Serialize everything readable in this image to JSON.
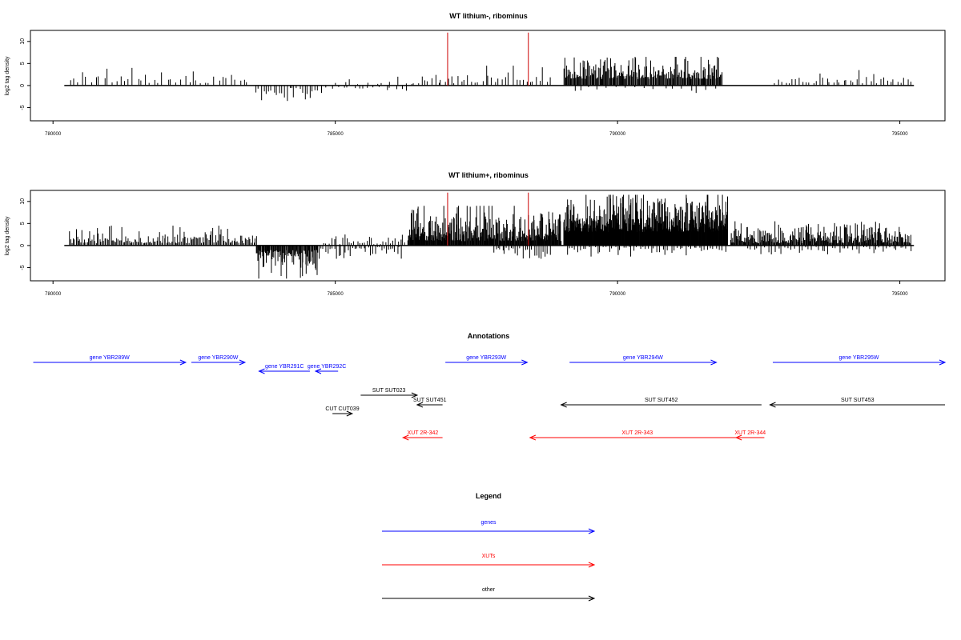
{
  "chart_data": [
    {
      "type": "bar",
      "title": "WT lithium-, ribominus",
      "ylabel": "log2 tag density",
      "xlim": [
        779600,
        795800
      ],
      "ylim": [
        -8,
        12.5
      ],
      "yticks": [
        -5,
        0,
        5,
        10
      ],
      "xticks": [
        780000,
        785000,
        790000,
        795000
      ],
      "baseline_range": [
        780200,
        795250
      ],
      "red_markers": [
        786990,
        788420
      ],
      "red_marker_top": 12,
      "density_regions": [
        {
          "from": 780300,
          "to": 783500,
          "sign": 1,
          "min": 0.5,
          "max": 4,
          "step": 75
        },
        {
          "from": 783600,
          "to": 784700,
          "sign": -1,
          "min": 0.5,
          "max": 3.5,
          "step": 45
        },
        {
          "from": 784750,
          "to": 786300,
          "sign": -1,
          "min": 0.3,
          "max": 2,
          "step": 95
        },
        {
          "from": 785000,
          "to": 786400,
          "sign": 1,
          "min": 0.3,
          "max": 2,
          "step": 140
        },
        {
          "from": 786400,
          "to": 788800,
          "sign": 1,
          "min": 0.5,
          "max": 4.5,
          "step": 60
        },
        {
          "from": 789050,
          "to": 791850,
          "sign": 1,
          "min": 1.5,
          "max": 6.5,
          "step": 14
        },
        {
          "from": 789200,
          "to": 791800,
          "sign": -1,
          "min": 0.3,
          "max": 2,
          "step": 160
        },
        {
          "from": 792800,
          "to": 795200,
          "sign": 1,
          "min": 0.5,
          "max": 3.5,
          "step": 60
        }
      ]
    },
    {
      "type": "bar",
      "title": "WT lithium+, ribominus",
      "ylabel": "log2 tag density",
      "xlim": [
        779600,
        795800
      ],
      "ylim": [
        -8,
        12.5
      ],
      "yticks": [
        -5,
        0,
        5,
        10
      ],
      "xticks": [
        780000,
        785000,
        790000,
        795000
      ],
      "baseline_range": [
        780200,
        795250
      ],
      "red_markers": [
        786990,
        788420
      ],
      "red_marker_top": 12,
      "density_regions": [
        {
          "from": 780300,
          "to": 783600,
          "sign": 1,
          "min": 0.5,
          "max": 4.5,
          "step": 22
        },
        {
          "from": 783600,
          "to": 784700,
          "sign": -1,
          "min": 1,
          "max": 7.5,
          "step": 12
        },
        {
          "from": 784700,
          "to": 786200,
          "sign": -1,
          "min": 0.3,
          "max": 3,
          "step": 40
        },
        {
          "from": 784800,
          "to": 786300,
          "sign": 1,
          "min": 0.3,
          "max": 2.5,
          "step": 45
        },
        {
          "from": 786300,
          "to": 789000,
          "sign": 1,
          "min": 1,
          "max": 9,
          "step": 9
        },
        {
          "from": 787800,
          "to": 788800,
          "sign": -1,
          "min": 0.5,
          "max": 3,
          "step": 40
        },
        {
          "from": 789050,
          "to": 791950,
          "sign": 1,
          "min": 3,
          "max": 11.5,
          "step": 6
        },
        {
          "from": 789100,
          "to": 791900,
          "sign": -1,
          "min": 0.3,
          "max": 2.5,
          "step": 50
        },
        {
          "from": 792000,
          "to": 795200,
          "sign": 1,
          "min": 0.5,
          "max": 5.5,
          "step": 12
        },
        {
          "from": 792300,
          "to": 795200,
          "sign": -1,
          "min": 0.3,
          "max": 2.5,
          "step": 60
        }
      ]
    },
    {
      "type": "diagram",
      "title": "Annotations",
      "features": [
        {
          "label": "gene YBR289W",
          "class": "gene",
          "from": 779650,
          "to": 782350,
          "strand": "+",
          "row": 0
        },
        {
          "label": "gene YBR290W",
          "class": "gene",
          "from": 782450,
          "to": 783400,
          "strand": "+",
          "row": 0
        },
        {
          "label": "gene YBR291C",
          "class": "gene",
          "from": 783650,
          "to": 784550,
          "strand": "-",
          "row": 1
        },
        {
          "label": "gene YBR292C",
          "class": "gene",
          "from": 784650,
          "to": 785050,
          "strand": "-",
          "row": 1
        },
        {
          "label": "gene YBR293W",
          "class": "gene",
          "from": 786950,
          "to": 788400,
          "strand": "+",
          "row": 0
        },
        {
          "label": "gene YBR294W",
          "class": "gene",
          "from": 789150,
          "to": 791750,
          "strand": "+",
          "row": 0
        },
        {
          "label": "gene YBR295W",
          "class": "gene",
          "from": 792750,
          "to": 795800,
          "strand": "+",
          "row": 0
        },
        {
          "label": "SUT SUT023",
          "class": "other",
          "from": 785450,
          "to": 786450,
          "strand": "+",
          "row": 2
        },
        {
          "label": "SUT SUT451",
          "class": "other",
          "from": 786450,
          "to": 786900,
          "strand": "-",
          "row": 3
        },
        {
          "label": "SUT SUT452",
          "class": "other",
          "from": 789000,
          "to": 792550,
          "strand": "-",
          "row": 3
        },
        {
          "label": "SUT SUT453",
          "class": "other",
          "from": 792700,
          "to": 795800,
          "strand": "-",
          "row": 3
        },
        {
          "label": "CUT CUT039",
          "class": "other",
          "from": 784950,
          "to": 785300,
          "strand": "+",
          "row": 4
        },
        {
          "label": "XUT 2R-342",
          "class": "xut",
          "from": 786200,
          "to": 786900,
          "strand": "-",
          "row": 5
        },
        {
          "label": "XUT 2R-343",
          "class": "xut",
          "from": 788450,
          "to": 792250,
          "strand": "-",
          "row": 5
        },
        {
          "label": "XUT 2R-344",
          "class": "xut",
          "from": 792100,
          "to": 792600,
          "strand": "-",
          "row": 5
        }
      ]
    }
  ],
  "legend": {
    "title": "Legend",
    "items": [
      {
        "label": "genes",
        "color": "#0000ff"
      },
      {
        "label": "XUTs",
        "color": "#ff0000"
      },
      {
        "label": "other",
        "color": "#000000"
      }
    ]
  },
  "colors": {
    "gene": "#0000ff",
    "xut": "#ff0000",
    "other": "#000000",
    "marker": "#cc0000"
  }
}
